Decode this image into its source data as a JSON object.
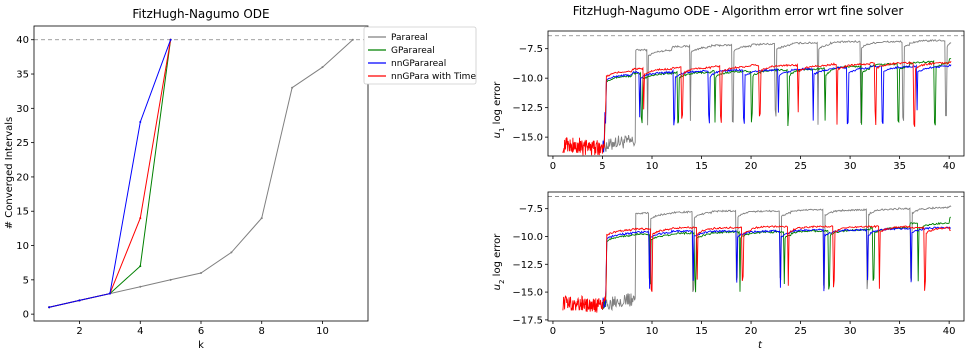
{
  "chart_data": [
    {
      "type": "line",
      "title": "FitzHugh-Nagumo ODE",
      "xlabel": "k",
      "ylabel": "# Converged Intervals",
      "xlim": [
        0.5,
        11.5
      ],
      "ylim": [
        -1,
        42
      ],
      "xticks": [
        2,
        4,
        6,
        8,
        10
      ],
      "yticks": [
        0,
        5,
        10,
        15,
        20,
        25,
        30,
        35,
        40
      ],
      "reference_line": 40,
      "legend_position": "outside-right",
      "series": [
        {
          "name": "Parareal",
          "color": "#808080",
          "x": [
            1,
            2,
            3,
            4,
            5,
            6,
            7,
            8,
            9,
            10,
            11
          ],
          "y": [
            1,
            2,
            3,
            4,
            5,
            6,
            9,
            14,
            33,
            36,
            40
          ]
        },
        {
          "name": "GParareal",
          "color": "#008000",
          "x": [
            1,
            2,
            3,
            4,
            5
          ],
          "y": [
            1,
            2,
            3,
            7,
            40
          ]
        },
        {
          "name": "nnGParareal",
          "color": "#0000ff",
          "x": [
            1,
            2,
            3,
            4,
            5
          ],
          "y": [
            1,
            2,
            3,
            28,
            40
          ]
        },
        {
          "name": "nnGPara with Time",
          "color": "#ff0000",
          "x": [
            1,
            2,
            3,
            4,
            5
          ],
          "y": [
            1,
            2,
            3,
            14,
            40
          ]
        }
      ]
    },
    {
      "type": "line",
      "title": "FitzHugh-Nagumo ODE - Algorithm error wrt fine solver",
      "xlim": [
        -0.5,
        41.5
      ],
      "xticks": [
        0,
        5,
        10,
        15,
        20,
        25,
        30,
        35,
        40
      ],
      "panels": [
        {
          "ylabel_sym": "u",
          "ylabel_sub": "1",
          "ylabel_rest": " log error",
          "ylim": [
            -16.6,
            -6.0
          ],
          "yticks": [
            -15.0,
            -12.5,
            -10.0,
            -7.5
          ],
          "ytick_labels": [
            "−15.0",
            "−12.5",
            "−10.0",
            "−7.5"
          ],
          "reference_line": -6.4,
          "series": [
            {
              "name": "Parareal",
              "color": "#808080",
              "start": 5.2,
              "levels": [
                -9.5,
                -8.2,
                -7.6,
                -7.3,
                -7.2,
                -7.1,
                -7.0,
                -6.9,
                -6.9,
                -6.8,
                -6.7
              ],
              "drop_every": 4.3
            },
            {
              "name": "GParareal",
              "color": "#008000",
              "start": 5.2,
              "levels": [
                -10.4,
                -9.8,
                -9.6,
                -9.5,
                -9.4,
                -9.3,
                -9.2,
                -9.0,
                -8.8,
                -8.6,
                -8.3
              ],
              "drop_every": 3.7
            },
            {
              "name": "nnGParareal",
              "color": "#0000ff",
              "start": 5.2,
              "levels": [
                -10.2,
                -9.7,
                -9.5,
                -9.4,
                -9.3,
                -9.3,
                -9.2,
                -9.1,
                -9.0,
                -9.0,
                -8.9
              ],
              "drop_every": 3.5
            },
            {
              "name": "nnGPara with Time",
              "color": "#ff0000",
              "start": 5.2,
              "levels": [
                -9.9,
                -9.4,
                -9.2,
                -9.1,
                -9.0,
                -8.9,
                -8.9,
                -8.8,
                -8.7,
                -8.7,
                -8.6
              ],
              "drop_every": 3.9
            }
          ],
          "initial_noise_level": -15.7
        },
        {
          "ylabel_sym": "u",
          "ylabel_sub": "2",
          "ylabel_rest": " log error",
          "ylim": [
            -17.6,
            -6.0
          ],
          "xlabel": "t",
          "yticks": [
            -17.5,
            -15.0,
            -12.5,
            -10.0,
            -7.5
          ],
          "ytick_labels": [
            "−17.5",
            "−15.0",
            "−12.5",
            "−10.0",
            "−7.5"
          ],
          "reference_line": -6.4,
          "series": [
            {
              "name": "Parareal",
              "color": "#808080",
              "start": 5.3,
              "levels": [
                -9.8,
                -8.2,
                -7.9,
                -7.8,
                -7.7,
                -7.7,
                -7.6,
                -7.6,
                -7.5,
                -7.4,
                -7.3
              ],
              "drop_every": 4.4
            },
            {
              "name": "GParareal",
              "color": "#008000",
              "start": 5.3,
              "levels": [
                -10.3,
                -9.9,
                -9.8,
                -9.7,
                -9.6,
                -9.6,
                -9.5,
                -9.4,
                -9.2,
                -8.8,
                -8.3
              ],
              "drop_every": 4.5
            },
            {
              "name": "nnGParareal",
              "color": "#0000ff",
              "start": 5.3,
              "levels": [
                -10.2,
                -9.7,
                -9.6,
                -9.5,
                -9.5,
                -9.5,
                -9.4,
                -9.4,
                -9.3,
                -9.2,
                -9.2
              ],
              "drop_every": 4.4
            },
            {
              "name": "nnGPara with Time",
              "color": "#ff0000",
              "start": 5.3,
              "levels": [
                -9.8,
                -9.4,
                -9.3,
                -9.2,
                -9.2,
                -9.1,
                -9.1,
                -9.1,
                -9.1,
                -9.2,
                -9.4
              ],
              "drop_every": 4.6
            }
          ],
          "initial_noise_level": -16.0
        }
      ]
    }
  ]
}
